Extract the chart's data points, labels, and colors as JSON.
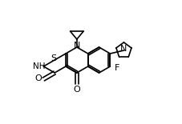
{
  "bg_color": "#ffffff",
  "line_color": "#000000",
  "line_width": 1.2,
  "font_size": 7.5,
  "fig_width": 2.27,
  "fig_height": 1.55,
  "dpi": 100
}
